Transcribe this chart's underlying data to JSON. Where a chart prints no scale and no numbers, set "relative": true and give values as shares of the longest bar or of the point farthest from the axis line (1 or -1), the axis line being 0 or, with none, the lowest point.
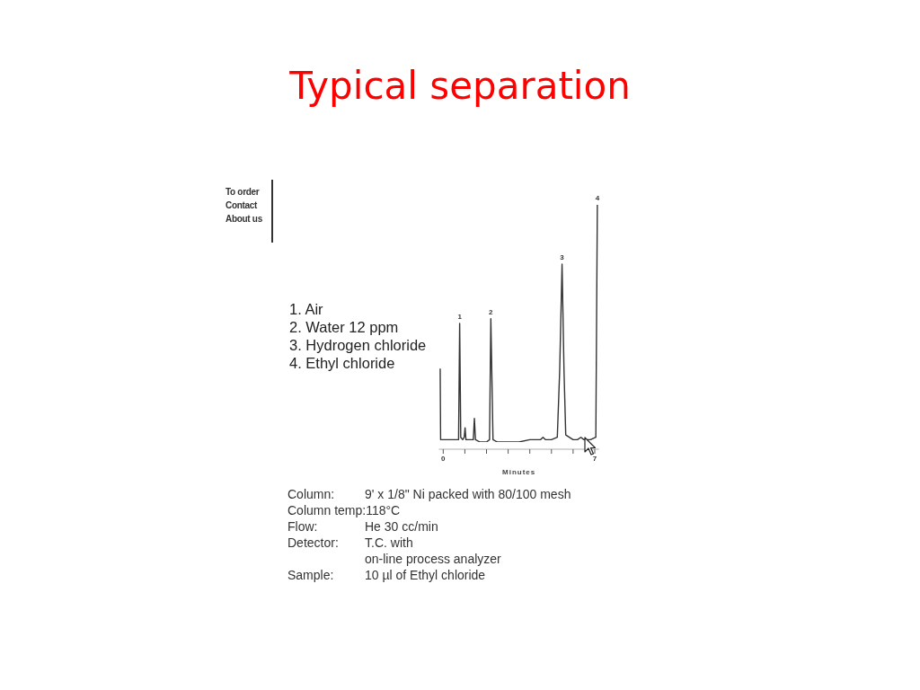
{
  "chart_data": {
    "type": "line",
    "title": "Typical separation",
    "xlabel": "Minutes",
    "relative": true,
    "color": "#333333",
    "x": [
      -0.14,
      -0.12,
      0,
      0.3,
      0.6,
      0.71,
      0.76,
      0.81,
      0.9,
      0.97,
      1.01,
      1.05,
      1.2,
      1.39,
      1.44,
      1.49,
      1.7,
      2.0,
      2.14,
      2.2,
      2.3,
      2.5,
      3.0,
      3.5,
      4.0,
      4.5,
      4.61,
      4.72,
      5.0,
      5.27,
      5.38,
      5.49,
      5.58,
      5.66,
      6.0,
      6.2,
      6.36,
      6.5,
      6.8,
      7.05,
      7.12
    ],
    "values": [
      0.31,
      0.01,
      0.01,
      0.01,
      0.01,
      0.01,
      0.5,
      0.02,
      0.01,
      0.02,
      0.06,
      0.01,
      0.01,
      0.01,
      0.1,
      0.01,
      0,
      0,
      0.01,
      0.52,
      0.01,
      0,
      0,
      0,
      0.01,
      0.01,
      0.02,
      0.01,
      0.01,
      0.02,
      0.3,
      0.75,
      0.3,
      0.03,
      0.01,
      0.01,
      0.02,
      0.01,
      0.01,
      0.02,
      1.0
    ],
    "xlim": [
      -0.2,
      7.2
    ],
    "xticks": [
      0,
      {
        "value": 1,
        "label": null
      },
      {
        "value": 2,
        "label": null
      },
      {
        "value": 3,
        "label": null
      },
      {
        "value": 4,
        "label": null
      },
      {
        "value": 5,
        "label": null
      },
      {
        "value": 6,
        "label": null
      },
      7
    ],
    "annotations": [
      "To order",
      "Contact",
      "About us",
      {
        "text": "1",
        "x": 0.76,
        "y": 0.5
      },
      {
        "text": "2",
        "x": 2.2,
        "y": 0.52
      },
      {
        "text": "3",
        "x": 5.49,
        "y": 0.75
      },
      {
        "text": "4",
        "x": 7.12,
        "y": 1.0
      },
      "1. Air",
      "2. Water 12 ppm",
      "3. Hydrogen chloride",
      "4. Ethyl chloride",
      "Column:",
      "9' x 1/8\" Ni packed with 80/100 mesh",
      "Column temp:118°C",
      "Flow:",
      "He 30 cc/min",
      "Detector:",
      "T.C. with",
      "on-line process analyzer",
      "Sample:",
      "10 µl of Ethyl chloride"
    ]
  }
}
